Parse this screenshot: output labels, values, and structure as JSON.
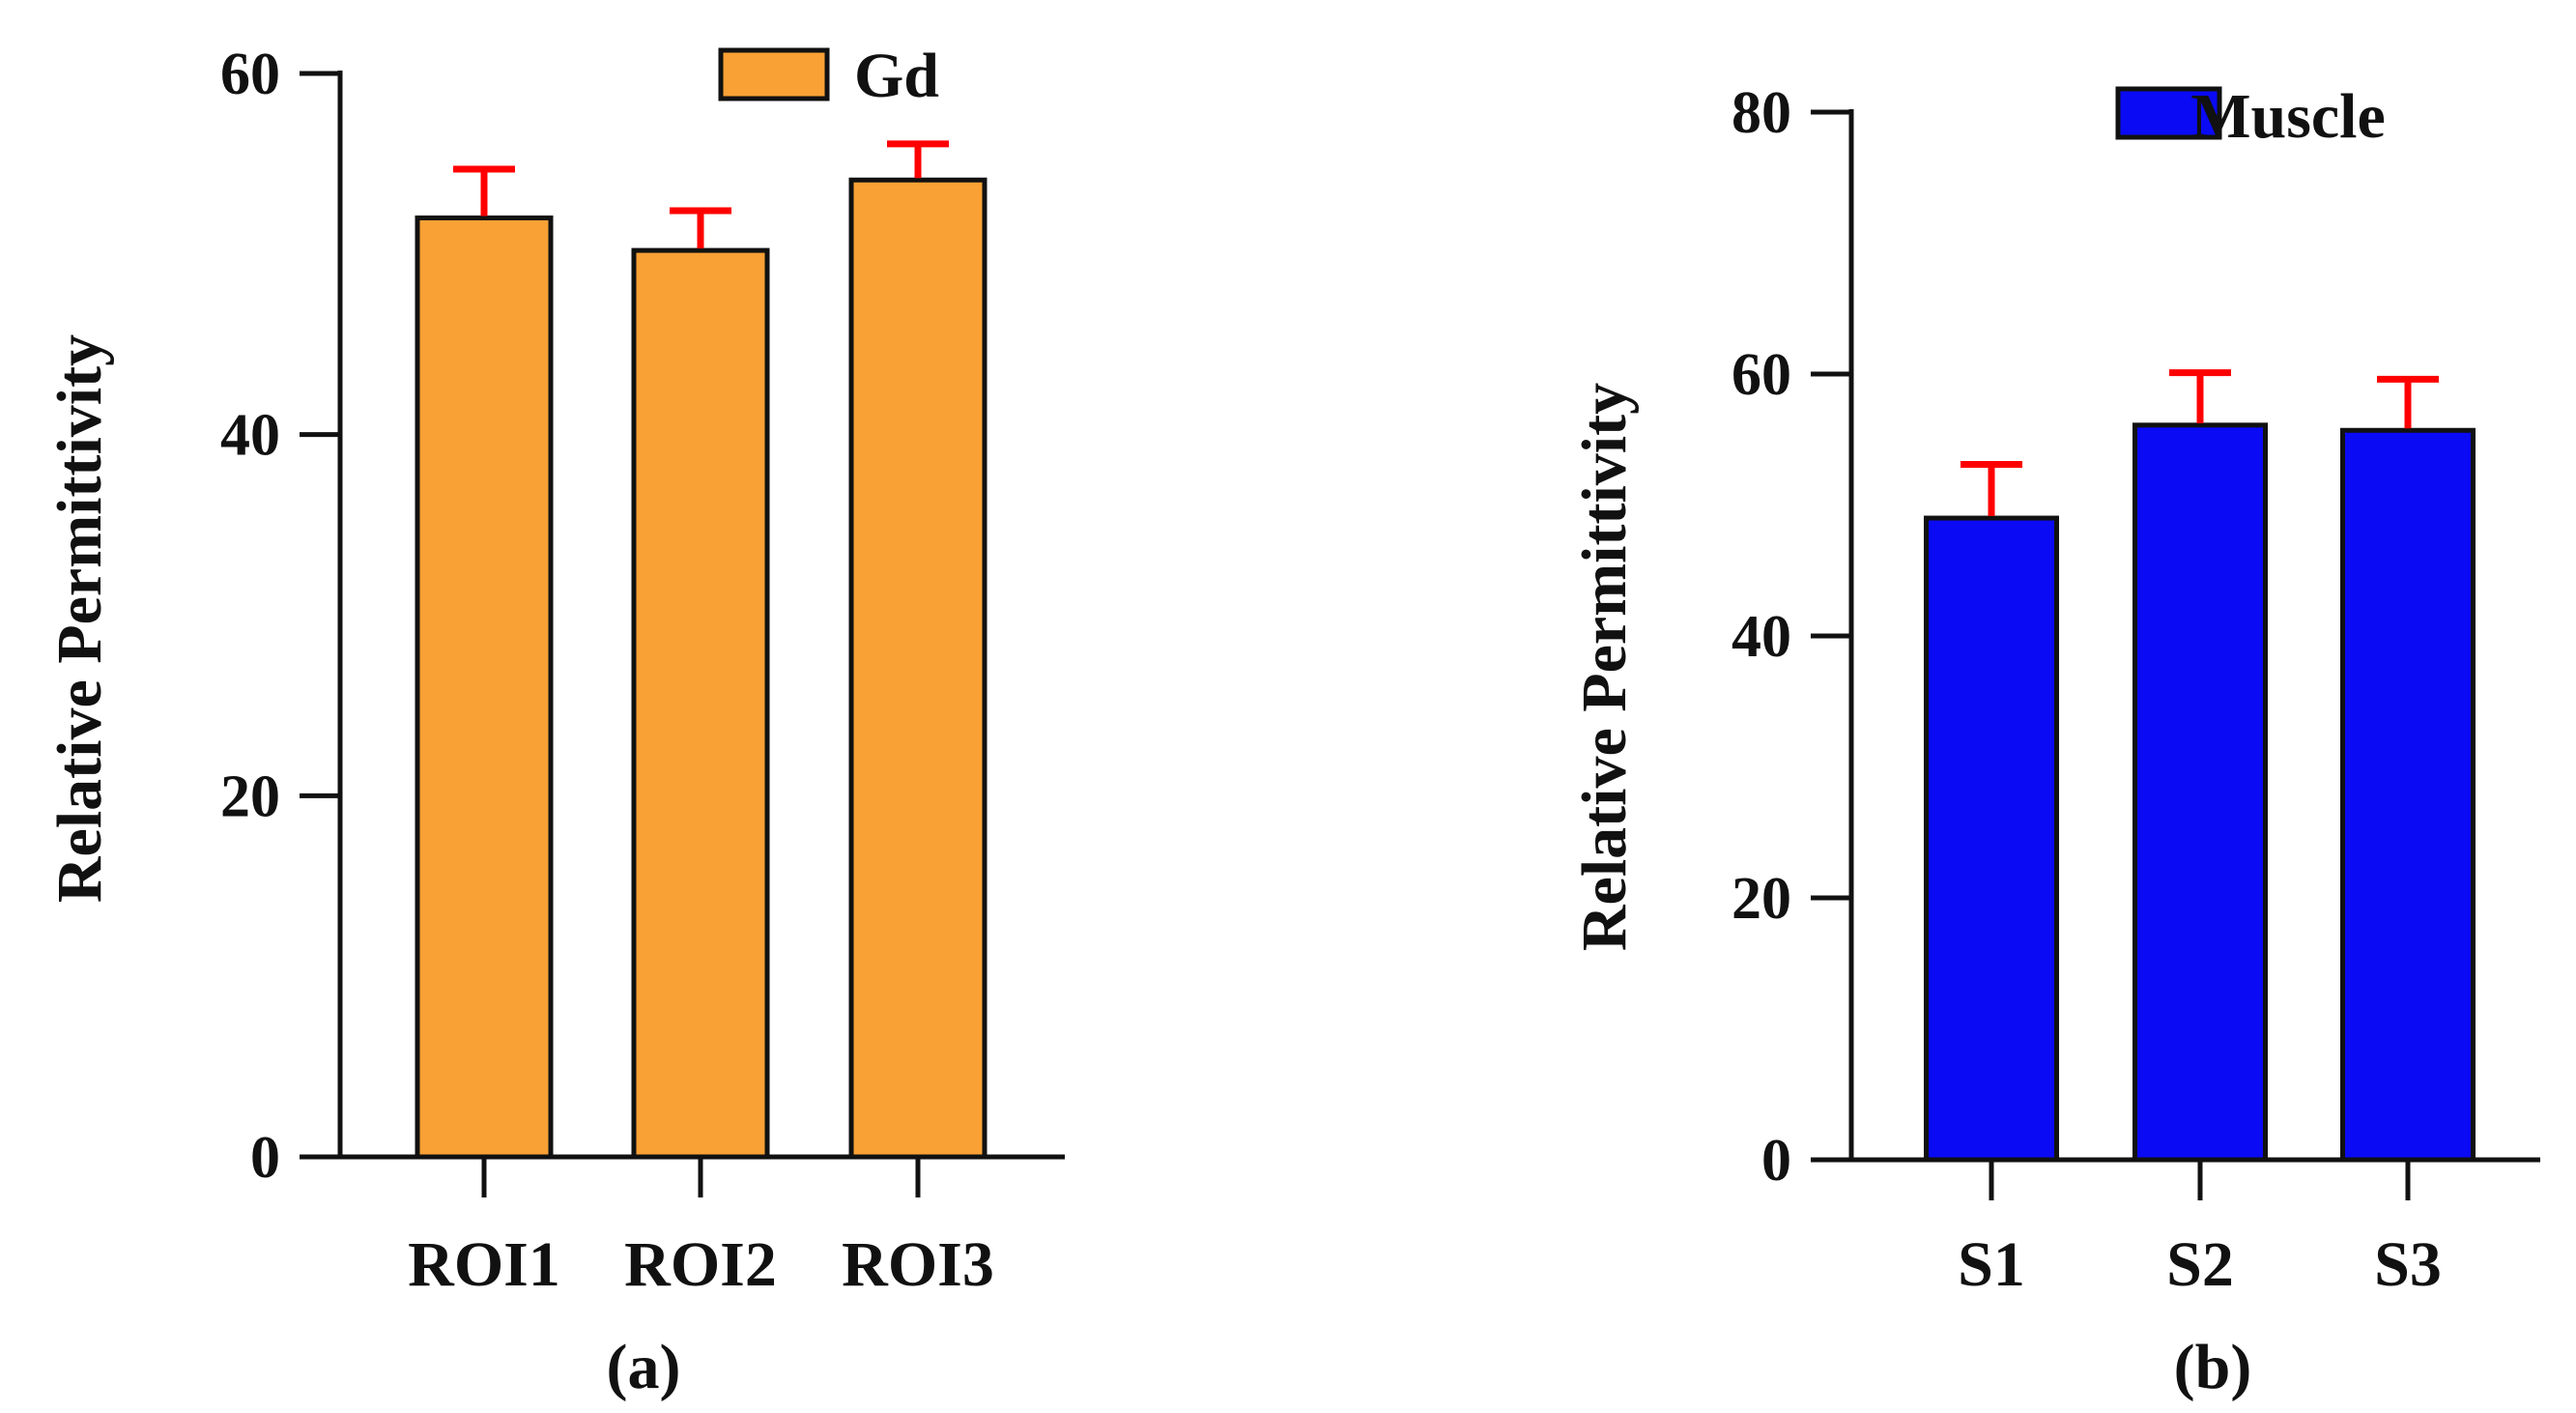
{
  "chart_data": [
    {
      "type": "bar",
      "panel_label": "(a)",
      "title": "",
      "xlabel": "",
      "ylabel": "Relative Permittivity",
      "ylim": [
        0,
        60
      ],
      "yticks": [
        0,
        20,
        40,
        60
      ],
      "categories": [
        "ROI1",
        "ROI2",
        "ROI3"
      ],
      "series": [
        {
          "name": "Gd",
          "color": "#F9A135",
          "error_color": "#FF0000",
          "values": [
            52,
            50.2,
            54.1
          ],
          "errors": [
            2.7,
            2.2,
            2.0
          ]
        }
      ],
      "legend": "top-right",
      "grid": false
    },
    {
      "type": "bar",
      "panel_label": "(b)",
      "title": "",
      "xlabel": "",
      "ylabel": "Relative Permittivity",
      "ylim": [
        0,
        80
      ],
      "yticks": [
        0,
        20,
        40,
        60,
        80
      ],
      "categories": [
        "S1",
        "S2",
        "S3"
      ],
      "series": [
        {
          "name": "Muscle",
          "color": "#0A0AF5",
          "error_color": "#FF0000",
          "values": [
            49,
            56.1,
            55.7
          ],
          "errors": [
            4.1,
            4.0,
            3.9
          ]
        }
      ],
      "legend": "top-right",
      "grid": false
    }
  ]
}
